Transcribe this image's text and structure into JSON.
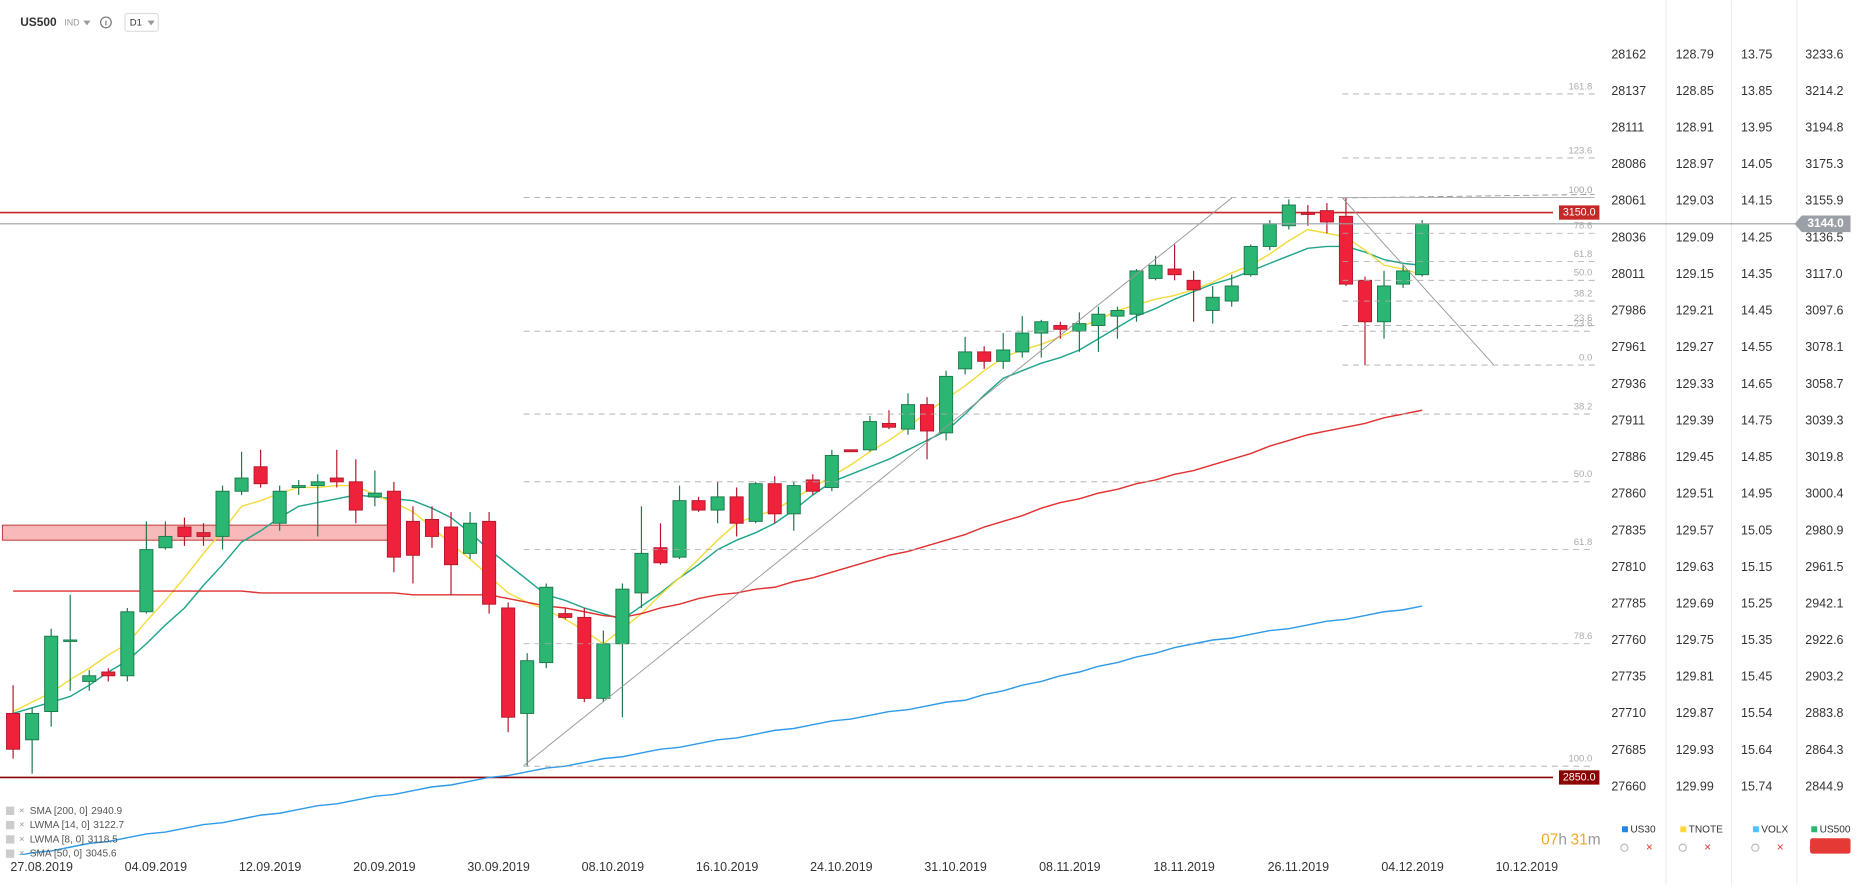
{
  "header": {
    "symbol": "US500",
    "market": "IND",
    "timeframe": "D1"
  },
  "chart_data": {
    "type": "candlestick",
    "axis_name": "US500",
    "axis_color": "#2bb673",
    "color_up": "#2bb673",
    "color_down": "#f0213a",
    "categories": [
      null,
      "27.08.2019",
      null,
      null,
      null,
      null,
      null,
      "04.09.2019",
      null,
      null,
      null,
      null,
      null,
      "12.09.2019",
      null,
      null,
      null,
      null,
      null,
      "20.09.2019",
      null,
      null,
      null,
      null,
      null,
      "30.09.2019",
      null,
      null,
      null,
      null,
      null,
      "08.10.2019",
      null,
      null,
      null,
      null,
      null,
      "16.10.2019",
      null,
      null,
      null,
      null,
      null,
      "24.10.2019",
      null,
      null,
      null,
      null,
      null,
      "31.10.2019",
      null,
      null,
      null,
      null,
      null,
      "08.11.2019",
      null,
      null,
      null,
      null,
      null,
      "18.11.2019",
      null,
      null,
      null,
      null,
      null,
      "26.11.2019",
      null,
      null,
      null,
      null,
      null,
      "04.12.2019",
      null,
      null,
      null,
      null,
      null,
      "10.12.2019",
      null
    ],
    "open": [
      2884,
      2870,
      2885,
      2923,
      2901,
      2906,
      2904,
      2938,
      2972,
      2983,
      2980,
      2978,
      3002,
      3015,
      2985,
      3004,
      3005,
      3009,
      3007,
      2999,
      3002,
      2986,
      2987,
      2983,
      2969,
      2986,
      2940,
      2884,
      2911,
      2937,
      2935,
      2892,
      2921,
      2948,
      2972,
      2967,
      2997,
      2992,
      2999,
      2986,
      3006,
      2990,
      3008,
      3004,
      3024,
      3024,
      3038,
      3035,
      3048,
      3033,
      3067,
      3076,
      3071,
      3076,
      3086,
      3090,
      3087,
      3090,
      3095,
      3096,
      3115,
      3120,
      3114,
      3098,
      3103,
      3117,
      3132,
      3143,
      3150,
      3151,
      3148,
      3114,
      3092,
      3112,
      3117,
      null,
      null,
      null,
      null,
      null,
      null
    ],
    "high": [
      2899,
      2887,
      2929,
      2947,
      2907,
      2908,
      2940,
      2986,
      2986,
      2988,
      2985,
      3005,
      3023,
      3024,
      3005,
      3008,
      3011,
      3024,
      3019,
      3013,
      3007,
      2994,
      2994,
      2991,
      2991,
      2991,
      2943,
      2916,
      2953,
      2940,
      2940,
      2928,
      2953,
      2994,
      2985,
      3005,
      2999,
      3007,
      3004,
      3007,
      3010,
      3007,
      3011,
      3024,
      3024,
      3042,
      3045,
      3054,
      3052,
      3066,
      3084,
      3079,
      3086,
      3095,
      3093,
      3092,
      3097,
      3100,
      3100,
      3120,
      3127,
      3133,
      3119,
      3111,
      3117,
      3133,
      3146,
      3157,
      3154,
      3155,
      3158,
      3116,
      3119,
      3122,
      3146,
      null,
      null,
      null,
      null,
      null,
      null
    ],
    "low": [
      2860,
      2852,
      2877,
      2896,
      2896,
      2901,
      2901,
      2937,
      2971,
      2973,
      2973,
      2971,
      3000,
      3004,
      2981,
      3000,
      2978,
      3004,
      2985,
      2994,
      2959,
      2953,
      2972,
      2947,
      2966,
      2937,
      2874,
      2856,
      2908,
      2934,
      2890,
      2890,
      2882,
      2940,
      2963,
      2966,
      2991,
      2985,
      2978,
      2985,
      2985,
      2981,
      3000,
      3002,
      3023,
      3023,
      3035,
      3032,
      3019,
      3029,
      3064,
      3067,
      3067,
      3073,
      3073,
      3083,
      3076,
      3076,
      3083,
      3092,
      3114,
      3114,
      3092,
      3091,
      3100,
      3116,
      3130,
      3141,
      3143,
      3139,
      3111,
      3069,
      3083,
      3110,
      3116,
      null,
      null,
      null,
      null,
      null,
      null
    ],
    "close": [
      2865,
      2884,
      2925,
      2923,
      2904,
      2904,
      2938,
      2971,
      2978,
      2978,
      2978,
      3002,
      3009,
      3006,
      3002,
      3005,
      3007,
      3007,
      2992,
      3001,
      2967,
      2968,
      2978,
      2963,
      2985,
      2942,
      2882,
      2912,
      2951,
      2935,
      2892,
      2921,
      2950,
      2969,
      2964,
      2997,
      2992,
      2999,
      2985,
      3006,
      2990,
      3005,
      3002,
      3021,
      3023,
      3039,
      3036,
      3048,
      3034,
      3063,
      3076,
      3071,
      3077,
      3086,
      3092,
      3088,
      3091,
      3096,
      3098,
      3119,
      3122,
      3117,
      3109,
      3105,
      3111,
      3132,
      3144,
      3154,
      3149,
      3145,
      3112,
      3092,
      3111,
      3119,
      3144,
      null,
      null,
      null,
      null,
      null,
      null
    ],
    "overlays": [
      {
        "name": "SMA [200, 0]",
        "color": "#2f9be8",
        "legend_value": 2940.9,
        "values": [
          2808,
          2810,
          2811,
          2813,
          2815,
          2816,
          2818,
          2820,
          2821,
          2823,
          2825,
          2826,
          2828,
          2830,
          2831,
          2833,
          2835,
          2836,
          2838,
          2840,
          2841,
          2843,
          2845,
          2846,
          2848,
          2850,
          2851,
          2853,
          2855,
          2856,
          2858,
          2860,
          2861,
          2863,
          2865,
          2866,
          2868,
          2870,
          2871,
          2873,
          2875,
          2876,
          2878,
          2880,
          2881,
          2883,
          2885,
          2886,
          2888,
          2890,
          2891,
          2894,
          2896,
          2899,
          2901,
          2904,
          2906,
          2909,
          2911,
          2914,
          2916,
          2919,
          2921,
          2923,
          2924,
          2926,
          2928,
          2929,
          2931,
          2933,
          2934,
          2936,
          2938,
          2939,
          2941,
          null,
          null,
          null,
          null,
          null,
          null
        ]
      },
      {
        "name": "LWMA [14, 0]",
        "color": "#1ea58a",
        "legend_value": 3122.7,
        "values": [
          2884,
          2887,
          2890,
          2893,
          2899,
          2906,
          2912,
          2921,
          2931,
          2940,
          2952,
          2963,
          2975,
          2981,
          2988,
          2994,
          2996,
          2998,
          3000,
          2999,
          2998,
          2997,
          2993,
          2988,
          2980,
          2971,
          2963,
          2955,
          2947,
          2944,
          2940,
          2937,
          2934,
          2941,
          2948,
          2956,
          2963,
          2971,
          2976,
          2980,
          2985,
          2992,
          3000,
          3007,
          3011,
          3015,
          3019,
          3024,
          3029,
          3034,
          3043,
          3053,
          3062,
          3066,
          3070,
          3073,
          3077,
          3083,
          3089,
          3095,
          3099,
          3104,
          3108,
          3112,
          3115,
          3119,
          3123,
          3127,
          3131,
          3132,
          3132,
          3129,
          3125,
          3123,
          3122,
          null,
          null,
          null,
          null,
          null,
          null
        ]
      },
      {
        "name": "LWMA [8, 0]",
        "color": "#f2dc3c",
        "legend_value": 3118.5,
        "values": [
          2885,
          2890,
          2895,
          2902,
          2908,
          2915,
          2921,
          2933,
          2944,
          2956,
          2969,
          2981,
          2994,
          2997,
          3001,
          3004,
          3004,
          3005,
          3005,
          3000,
          2996,
          2991,
          2983,
          2974,
          2966,
          2957,
          2948,
          2943,
          2939,
          2934,
          2928,
          2921,
          2929,
          2937,
          2947,
          2956,
          2966,
          2976,
          2985,
          2989,
          2992,
          2998,
          3004,
          3010,
          3016,
          3023,
          3029,
          3036,
          3044,
          3051,
          3058,
          3066,
          3073,
          3077,
          3080,
          3084,
          3089,
          3093,
          3098,
          3101,
          3104,
          3106,
          3109,
          3113,
          3118,
          3122,
          3128,
          3135,
          3141,
          3139,
          3137,
          3130,
          3122,
          3120,
          3117,
          null,
          null,
          null,
          null,
          null,
          null
        ]
      },
      {
        "name": "SMA [50, 0]",
        "color": "#e03030",
        "legend_value": 3045.6,
        "values": [
          2949,
          2949,
          2949,
          2949,
          2949,
          2949,
          2949,
          2949,
          2949,
          2949,
          2949,
          2949,
          2949,
          2948,
          2948,
          2948,
          2948,
          2948,
          2948,
          2948,
          2948,
          2947,
          2947,
          2947,
          2947,
          2947,
          2945,
          2943,
          2941,
          2940,
          2938,
          2936,
          2935,
          2937,
          2940,
          2942,
          2945,
          2947,
          2948,
          2950,
          2951,
          2954,
          2956,
          2959,
          2962,
          2965,
          2968,
          2970,
          2973,
          2976,
          2979,
          2983,
          2986,
          2989,
          2993,
          2996,
          2998,
          3001,
          3003,
          3006,
          3008,
          3011,
          3013,
          3016,
          3019,
          3022,
          3026,
          3029,
          3032,
          3034,
          3036,
          3038,
          3041,
          3043,
          3045,
          null,
          null,
          null,
          null,
          null,
          null
        ]
      }
    ],
    "ylim": [
      2808.9,
      3243.7
    ],
    "yticks": [
      3233.6,
      3214.2,
      3194.8,
      3175.3,
      3155.9,
      3136.5,
      {
        "value": 3117,
        "label": "3117.0"
      },
      3097.6,
      3078.1,
      3058.7,
      3039.3,
      3019.8,
      3000.4,
      2980.9,
      2961.5,
      2942.1,
      2922.6,
      2903.2,
      2883.8,
      2864.3,
      2844.9
    ],
    "other_axes": [
      {
        "name": "US30",
        "color": "#1e88e5",
        "ticks": [
          28162,
          28137,
          28111,
          28086,
          28061,
          28036,
          28011,
          27986,
          27961,
          27936,
          27911,
          27886,
          27860,
          27835,
          27810,
          27785,
          27760,
          27735,
          27710,
          27685,
          27660
        ]
      },
      {
        "name": "TNOTE",
        "color": "#fdd835",
        "ticks": [
          128.79,
          128.85,
          128.91,
          128.97,
          129.03,
          129.09,
          129.15,
          129.21,
          129.27,
          129.33,
          129.39,
          129.45,
          129.51,
          129.57,
          129.63,
          129.69,
          129.75,
          129.81,
          129.87,
          129.93,
          129.99
        ]
      },
      {
        "name": "VOLX",
        "color": "#4fc3f7",
        "ticks": [
          13.75,
          13.85,
          13.95,
          14.05,
          14.15,
          14.25,
          14.35,
          14.45,
          14.55,
          14.65,
          14.75,
          14.85,
          14.95,
          15.05,
          15.15,
          15.25,
          15.35,
          15.45,
          15.54,
          15.64,
          15.74
        ]
      }
    ],
    "levels": [
      {
        "value": 3150,
        "label": "3150.0",
        "color": "#c62828"
      },
      {
        "value": 2850,
        "label": "2850.0",
        "color": "#8b0000"
      }
    ],
    "last_price": {
      "value": 3144,
      "label": "3144.0",
      "color": "#9aa0a6"
    },
    "zone": {
      "low": 2976,
      "high": 2984,
      "color": "#f08080"
    },
    "fibonacci": [
      {
        "levels": [
          {
            "label": "0.0",
            "price": 3158
          },
          {
            "label": "23.6",
            "price": 3087
          },
          {
            "label": "38.2",
            "price": 3043
          },
          {
            "label": "50.0",
            "price": 3007
          },
          {
            "label": "61.8",
            "price": 2971
          },
          {
            "label": "78.6",
            "price": 2921
          },
          {
            "label": "100.0",
            "price": 2856
          }
        ]
      },
      {
        "levels": [
          {
            "label": "0.0",
            "price": 3069
          },
          {
            "label": "23.6",
            "price": 3090
          },
          {
            "label": "38.2",
            "price": 3103
          },
          {
            "label": "50.0",
            "price": 3114
          },
          {
            "label": "61.8",
            "price": 3124
          },
          {
            "label": "78.6",
            "price": 3139
          },
          {
            "label": "100.0",
            "price": 3158
          },
          {
            "label": "123.6",
            "price": 3179
          },
          {
            "label": "161.8",
            "price": 3213
          }
        ]
      }
    ]
  },
  "countdown": {
    "hours": "07",
    "hours_unit": "h",
    "minutes": "31",
    "minutes_unit": "m"
  }
}
